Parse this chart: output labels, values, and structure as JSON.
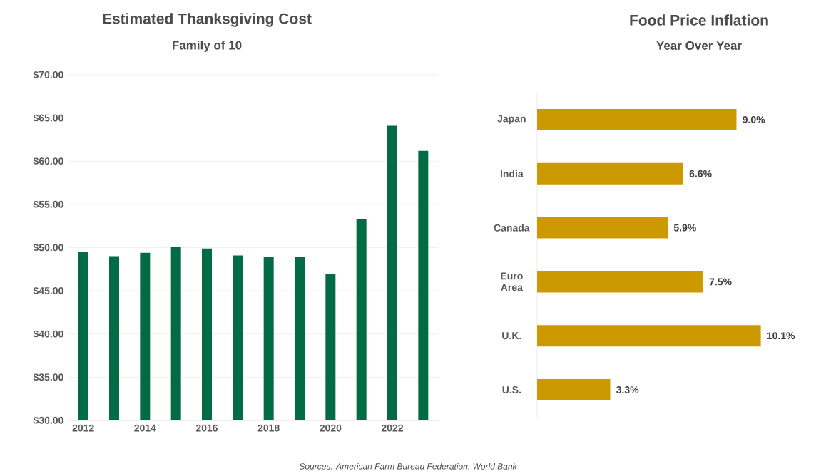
{
  "chart_data": [
    {
      "type": "bar",
      "title": "Estimated Thanksgiving Cost",
      "subtitle": "Family of 10",
      "categories": [
        "2012",
        null,
        "2014",
        null,
        "2016",
        null,
        "2018",
        null,
        "2020",
        null,
        "2022",
        null
      ],
      "values": [
        49.5,
        49.0,
        49.4,
        50.1,
        49.9,
        49.1,
        48.9,
        48.9,
        46.9,
        53.3,
        64.1,
        61.2
      ],
      "color": "#006b45",
      "ylim": [
        30,
        70
      ],
      "yticks": [
        {
          "value": 30,
          "label": "$30.00"
        },
        {
          "value": 35,
          "label": "$35.00"
        },
        {
          "value": 40,
          "label": "$40.00"
        },
        {
          "value": 45,
          "label": "$45.00"
        },
        {
          "value": 50,
          "label": "$50.00"
        },
        {
          "value": 55,
          "label": "$55.00"
        },
        {
          "value": 60,
          "label": "$60.00"
        },
        {
          "value": 65,
          "label": "$65.00"
        },
        {
          "value": 70,
          "label": "$70.00"
        }
      ],
      "grid": "y",
      "annotations": [
        "Sources: American Farm Bureau Federation, World Bank"
      ]
    },
    {
      "type": "bar",
      "orientation": "horizontal",
      "title": "Food Price Inflation",
      "subtitle": "Year Over Year",
      "categories": [
        "Japan",
        "India",
        "Canada",
        "Euro Area",
        "U.K.",
        "U.S."
      ],
      "values": [
        9.0,
        6.6,
        5.9,
        7.5,
        10.1,
        3.3
      ],
      "value_labels": [
        "9.0%",
        "6.6%",
        "5.9%",
        "7.5%",
        "10.1%",
        "3.3%"
      ],
      "color": "#cc9900",
      "tick_labels": "y"
    }
  ]
}
